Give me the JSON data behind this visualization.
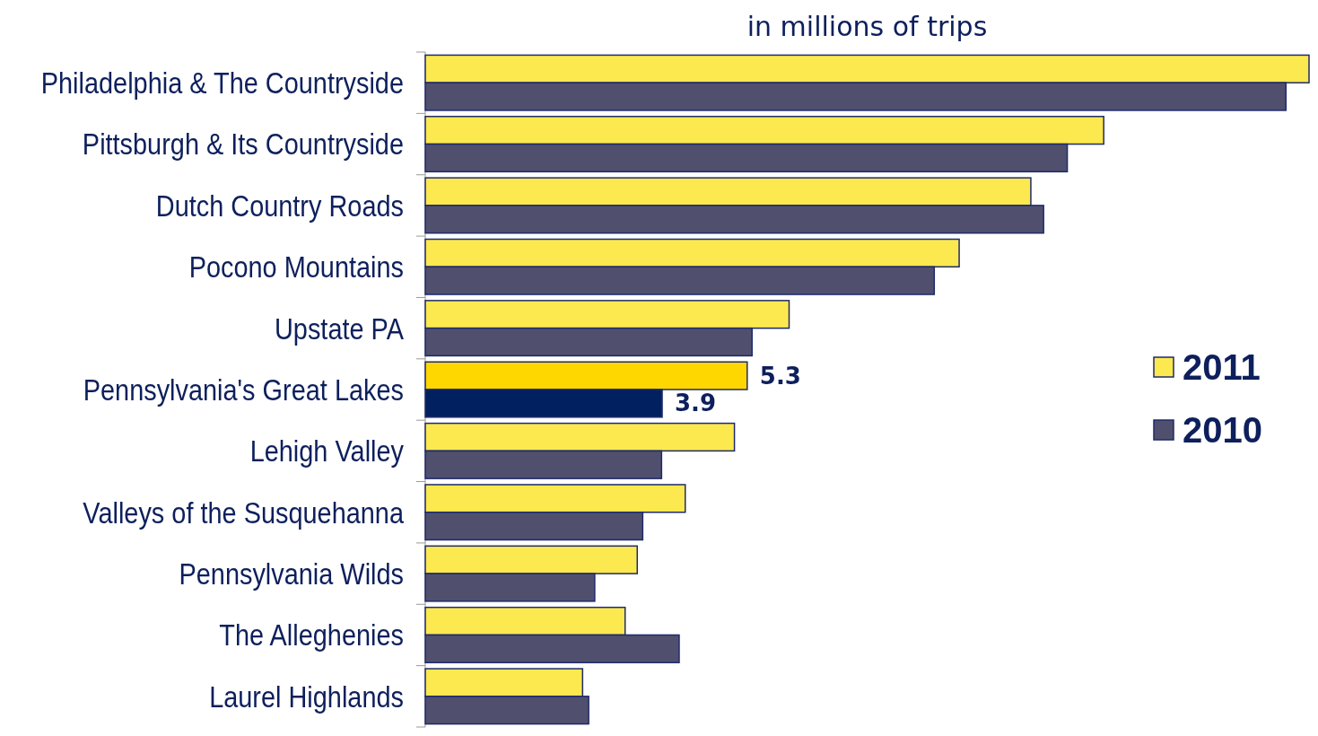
{
  "chart_data": {
    "type": "bar",
    "orientation": "horizontal",
    "title": "in millions of trips",
    "categories": [
      "Philadelphia & The Countryside",
      "Pittsburgh & Its Countryside",
      "Dutch Country Roads",
      "Pocono Mountains",
      "Upstate PA",
      "Pennsylvania's Great Lakes",
      "Lehigh Valley",
      "Valleys of the Susquehanna",
      "Pennsylvania Wilds",
      "The Alleghenies",
      "Laurel Highlands"
    ],
    "series": [
      {
        "name": "2011",
        "color": "#fce94f",
        "colors": [
          "#fce94f",
          "#fce94f",
          "#fce94f",
          "#fce94f",
          "#fce94f",
          "#ffd700",
          "#fce94f",
          "#fce94f",
          "#fce94f",
          "#fce94f",
          "#fce94f"
        ],
        "values": [
          14.55,
          11.17,
          9.97,
          8.79,
          5.99,
          5.3,
          5.09,
          4.28,
          3.49,
          3.29,
          2.59
        ],
        "value_labels": [
          null,
          null,
          null,
          null,
          null,
          "5.3",
          null,
          null,
          null,
          null,
          null
        ]
      },
      {
        "name": "2010",
        "color": "#50506e",
        "colors": [
          "#50506e",
          "#50506e",
          "#50506e",
          "#50506e",
          "#50506e",
          "#002060",
          "#50506e",
          "#50506e",
          "#50506e",
          "#50506e",
          "#50506e"
        ],
        "values": [
          14.17,
          10.57,
          10.18,
          8.38,
          5.38,
          3.9,
          3.89,
          3.58,
          2.79,
          4.18,
          2.69
        ],
        "value_labels": [
          null,
          null,
          null,
          null,
          null,
          "3.9",
          null,
          null,
          null,
          null,
          null
        ]
      }
    ],
    "xlim": [
      0,
      14.55
    ],
    "tick_labels": "y",
    "legend": "right"
  }
}
